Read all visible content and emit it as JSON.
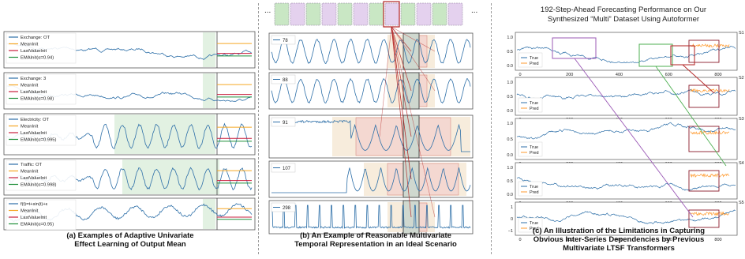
{
  "colors": {
    "series": "#2d6fa8",
    "mean": "#f5a623",
    "last": "#c81e3c",
    "ema": "#1f8f3a",
    "shade": "#d8ecd8",
    "purple": "#9b59b6",
    "red": "#b22222",
    "green": "#4caf50",
    "tan": "#f0dcc0",
    "pink": "#f3c9c9",
    "pred": "#ff9a2e"
  },
  "panel_a": {
    "caption_1": "(a) Examples of Adaptive Univariate",
    "caption_2": "Effect Learning of Output Mean",
    "rows": [
      {
        "legend": [
          "Exchange: OT",
          "MeanInit",
          "LastValueInit",
          "EMAInit(α=0.94)"
        ]
      },
      {
        "legend": [
          "Exchange: 3",
          "MeanInit",
          "LastValueInit",
          "EMAInit(α=0.98)"
        ]
      },
      {
        "legend": [
          "Electricity: OT",
          "MeanInit",
          "LastValueInit",
          "EMAInit(α=0.995)"
        ]
      },
      {
        "legend": [
          "Traffic: OT",
          "MeanInit",
          "LastValueInit",
          "EMAInit(α=0.998)"
        ]
      },
      {
        "legend": [
          "f(t)=t+sin(t)+ε",
          "MeanInit",
          "LastValueInit",
          "EMAInit(α=0.95)"
        ]
      }
    ]
  },
  "panel_b": {
    "caption_1": "(b) An Example of Reasonable Multivariate",
    "caption_2": "Temporal Representation in an Ideal Scenario",
    "ellipsis": "...",
    "rows": [
      {
        "label": "78"
      },
      {
        "label": "88"
      },
      {
        "label": "91"
      },
      {
        "label": "107"
      },
      {
        "label": "298"
      }
    ]
  },
  "panel_c": {
    "title_1": "192-Step-Ahead Forecasting Performance on Our",
    "title_2": "Synthesized “Multi” Dataset Using Autoformer",
    "caption_1": "(c) An Illustration of the Limitations in Capturing",
    "caption_2": "Obvious Inter-Series Dependencies by Previous",
    "caption_3": "Multivariate LTSF Transformers",
    "legend_true": "True",
    "legend_pred": "Pred",
    "row_tags": [
      "S1",
      "S2",
      "S3",
      "S4",
      "S5"
    ],
    "xticks": [
      "0",
      "200",
      "400",
      "600",
      "800"
    ],
    "yticks": [
      [
        "1.0",
        "0.5",
        "0.0"
      ],
      [
        "1.0",
        "0.5",
        "0.0"
      ],
      [
        "1.0",
        "0.5",
        "0.0"
      ],
      [
        "1.0",
        "0.5",
        "0.0"
      ],
      [
        "1",
        "0",
        "−1"
      ]
    ]
  },
  "chart_data": {
    "type": "line",
    "title": "192-Step-Ahead Forecasting Performance on Our Synthesized “Multi” Dataset Using Autoformer",
    "x_range": [
      0,
      960
    ],
    "xticks": [
      0,
      200,
      400,
      600,
      800
    ],
    "series": [
      {
        "name": "True",
        "panel": "S1"
      },
      {
        "name": "Pred",
        "panel": "S1"
      }
    ],
    "yticks": [
      [
        1.0,
        0.5,
        0.0
      ],
      [
        1.0,
        0.5,
        0.0
      ],
      [
        1.0,
        0.5,
        0.0
      ],
      [
        1.0,
        0.5,
        0.0
      ],
      [
        1,
        0,
        -1
      ]
    ]
  }
}
